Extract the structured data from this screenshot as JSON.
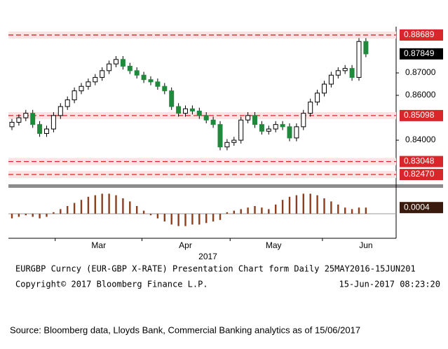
{
  "chart_data": {
    "type": "candlestick",
    "open": [
      0.846,
      0.848,
      0.85,
      0.852,
      0.847,
      0.843,
      0.845,
      0.851,
      0.855,
      0.858,
      0.862,
      0.864,
      0.866,
      0.868,
      0.871,
      0.874,
      0.876,
      0.873,
      0.871,
      0.869,
      0.867,
      0.866,
      0.864,
      0.862,
      0.855,
      0.852,
      0.854,
      0.853,
      0.851,
      0.849,
      0.847,
      0.837,
      0.839,
      0.84,
      0.849,
      0.851,
      0.847,
      0.844,
      0.845,
      0.847,
      0.846,
      0.841,
      0.846,
      0.852,
      0.857,
      0.861,
      0.865,
      0.869,
      0.871,
      0.872,
      0.868,
      0.884
    ],
    "high": [
      0.8495,
      0.8515,
      0.8535,
      0.8535,
      0.8485,
      0.8465,
      0.8525,
      0.8565,
      0.8595,
      0.8635,
      0.8655,
      0.8675,
      0.8695,
      0.8725,
      0.8755,
      0.8775,
      0.8775,
      0.8745,
      0.8725,
      0.8705,
      0.8685,
      0.8675,
      0.8655,
      0.8635,
      0.8565,
      0.8555,
      0.8555,
      0.8545,
      0.8525,
      0.8505,
      0.8485,
      0.8405,
      0.8415,
      0.8505,
      0.8525,
      0.8525,
      0.8485,
      0.8465,
      0.8485,
      0.8485,
      0.8475,
      0.8475,
      0.8535,
      0.8585,
      0.8625,
      0.8665,
      0.8705,
      0.8725,
      0.8735,
      0.8735,
      0.8855,
      0.8855
    ],
    "low": [
      0.8445,
      0.8465,
      0.8485,
      0.8455,
      0.8415,
      0.8415,
      0.8435,
      0.8495,
      0.8535,
      0.8565,
      0.8605,
      0.8625,
      0.8645,
      0.8665,
      0.8695,
      0.8725,
      0.8715,
      0.8695,
      0.8675,
      0.8655,
      0.8645,
      0.8625,
      0.8605,
      0.8535,
      0.8505,
      0.8505,
      0.8515,
      0.8495,
      0.8475,
      0.8455,
      0.8355,
      0.8355,
      0.8375,
      0.8385,
      0.8475,
      0.8455,
      0.8425,
      0.8425,
      0.8435,
      0.8445,
      0.8395,
      0.8395,
      0.8445,
      0.8505,
      0.8555,
      0.8595,
      0.8635,
      0.8675,
      0.8695,
      0.8665,
      0.8665,
      0.877
    ],
    "close": [
      0.848,
      0.85,
      0.852,
      0.847,
      0.843,
      0.845,
      0.851,
      0.855,
      0.858,
      0.862,
      0.864,
      0.866,
      0.868,
      0.871,
      0.874,
      0.876,
      0.873,
      0.871,
      0.869,
      0.867,
      0.866,
      0.864,
      0.862,
      0.855,
      0.852,
      0.854,
      0.853,
      0.851,
      0.849,
      0.847,
      0.837,
      0.839,
      0.84,
      0.849,
      0.851,
      0.847,
      0.844,
      0.845,
      0.847,
      0.846,
      0.841,
      0.846,
      0.852,
      0.857,
      0.861,
      0.865,
      0.869,
      0.871,
      0.872,
      0.868,
      0.884,
      0.87849
    ],
    "up_color": "#ffffff",
    "down_color": "#1f8a3c",
    "ylim": [
      0.8219,
      0.89
    ],
    "yticks": [
      {
        "value": 0.87,
        "label": "0.87000"
      },
      {
        "value": 0.86,
        "label": "0.86000"
      },
      {
        "value": 0.84,
        "label": "0.84000"
      }
    ],
    "xticks": [
      {
        "value": 12.5,
        "label": "Mar"
      },
      {
        "value": 25,
        "label": "Apr"
      },
      {
        "value": 37.7,
        "label": "May"
      },
      {
        "value": 51,
        "label": "Jun"
      }
    ],
    "year_label": "2017",
    "levels": {
      "values": [
        0.88689,
        0.85098,
        0.83048,
        0.8247
      ],
      "value_labels": [
        "0.88689",
        "0.85098",
        "0.83048",
        "0.82470"
      ],
      "color": "#d9262b"
    },
    "last_price": {
      "value": 0.87849,
      "label": "0.87849"
    },
    "oscillator": {
      "values": [
        -0.0003,
        -0.0002,
        -0.0001,
        -0.0002,
        -0.0003,
        -0.0002,
        0.0001,
        0.0003,
        0.0005,
        0.0007,
        0.0009,
        0.0011,
        0.0012,
        0.0013,
        0.0013,
        0.0012,
        0.001,
        0.0008,
        0.0005,
        0.0002,
        -0.0001,
        -0.0003,
        -0.0005,
        -0.0007,
        -0.0008,
        -0.0008,
        -0.0007,
        -0.0007,
        -0.0006,
        -0.0005,
        -0.0004,
        0.0001,
        0.0002,
        0.0003,
        0.0004,
        0.0005,
        0.0004,
        0.0003,
        0.0006,
        0.0009,
        0.0011,
        0.0012,
        0.0013,
        0.0013,
        0.0012,
        0.001,
        0.0008,
        0.0006,
        0.0004,
        0.0003,
        0.0004,
        0.0004
      ],
      "color": "#8b3f1f",
      "ylim": [
        -0.0015,
        0.0015
      ],
      "last": {
        "value": 0.0004,
        "label": "0.0004"
      }
    },
    "footer": {
      "line1": "EURGBP Curncy (EUR-GBP X-RATE) Presentation Chart form  Daily 25MAY2016-15JUN201",
      "copyright": "Copyright© 2017 Bloomberg Finance L.P.",
      "timestamp": "15-Jun-2017 08:23:20"
    },
    "source": "Source: Bloomberg data, Lloyds Bank, Commercial Banking analytics as of 15/06/2017"
  }
}
